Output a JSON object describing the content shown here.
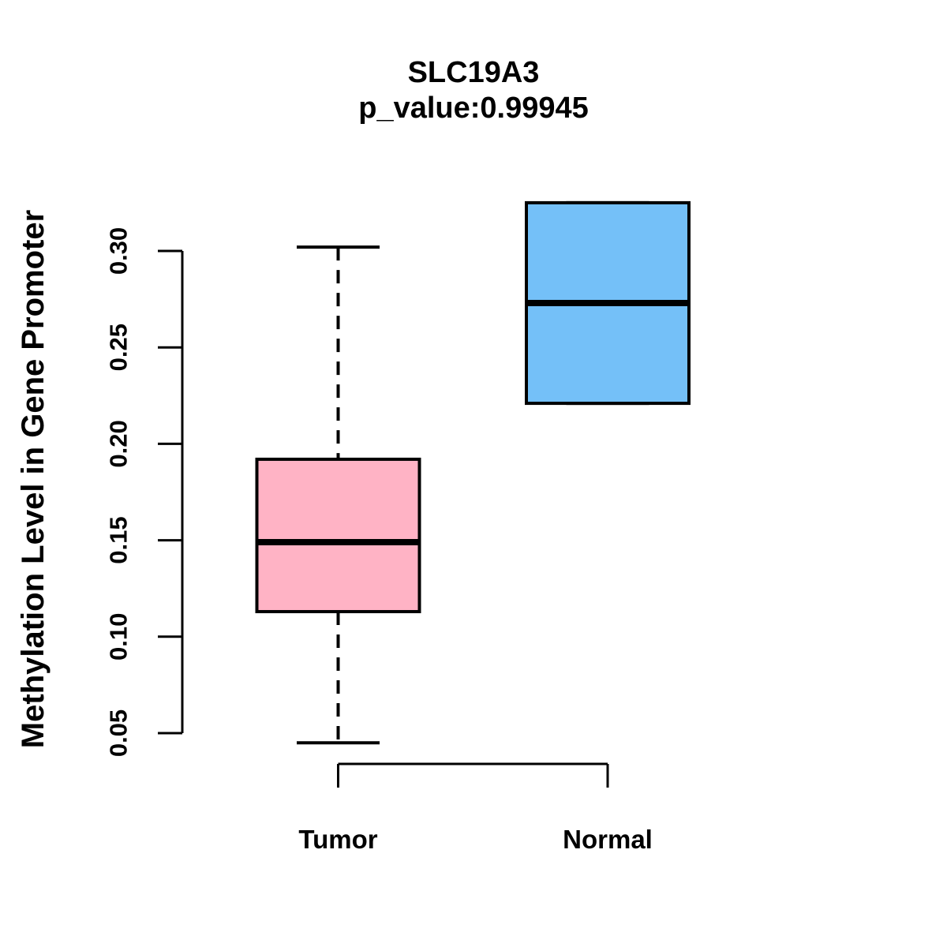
{
  "title": {
    "gene": "SLC19A3",
    "p_value_line": "p_value:0.99945"
  },
  "colors": {
    "tumor_box_fill": "#FFB3C5",
    "normal_box_fill": "#74C0F8",
    "line": "#000000",
    "background": "#FFFFFF"
  },
  "chart_data": {
    "type": "boxplot",
    "title": "SLC19A3",
    "subtitle": "p_value:0.99945",
    "ylabel": "Methylation Level in Gene Promoter",
    "xlabel": "",
    "categories": [
      "Tumor",
      "Normal"
    ],
    "series": [
      {
        "name": "Tumor",
        "color": "#FFB3C5",
        "whisker_low": 0.045,
        "q1": 0.113,
        "median": 0.149,
        "q3": 0.192,
        "whisker_high": 0.302
      },
      {
        "name": "Normal",
        "color": "#74C0F8",
        "whisker_low": 0.221,
        "q1": 0.221,
        "median": 0.273,
        "q3": 0.325,
        "whisker_high": 0.325
      }
    ],
    "yticks": [
      0.05,
      0.1,
      0.15,
      0.2,
      0.25,
      0.3
    ],
    "ytick_labels": [
      "0.05",
      "0.10",
      "0.15",
      "0.20",
      "0.25",
      "0.30"
    ],
    "ylim": [
      0.044,
      0.326
    ],
    "grid": false,
    "legend": "none",
    "whisker_style": "dashed"
  }
}
